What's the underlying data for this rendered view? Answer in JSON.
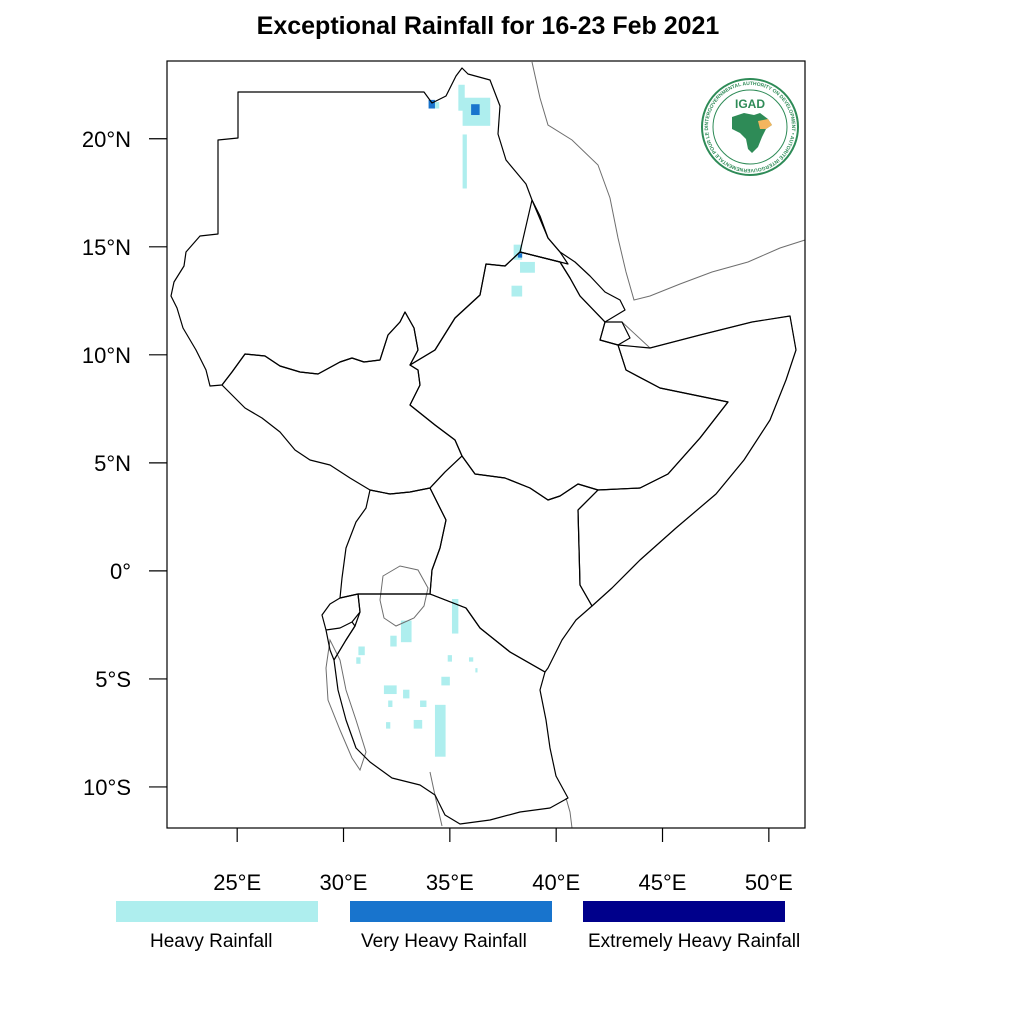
{
  "title": "Exceptional Rainfall for 16-23 Feb 2021",
  "colors": {
    "heavy": "#aeeeee",
    "very_heavy": "#1874cd",
    "extremely_heavy": "#00008b",
    "border": "#000000",
    "coast_gray": "#6e6e6e"
  },
  "axes": {
    "lon_ticks": [
      {
        "value": 25,
        "label": "25°E"
      },
      {
        "value": 30,
        "label": "30°E"
      },
      {
        "value": 35,
        "label": "35°E"
      },
      {
        "value": 40,
        "label": "40°E"
      },
      {
        "value": 45,
        "label": "45°E"
      },
      {
        "value": 50,
        "label": "50°E"
      }
    ],
    "lat_ticks": [
      {
        "value": 20,
        "label": "20°N"
      },
      {
        "value": 15,
        "label": "15°N"
      },
      {
        "value": 10,
        "label": "10°N"
      },
      {
        "value": 5,
        "label": "5°N"
      },
      {
        "value": 0,
        "label": "0°"
      },
      {
        "value": -5,
        "label": "5°S"
      },
      {
        "value": -10,
        "label": "10°S"
      }
    ],
    "lon_range": [
      21.7,
      51.7
    ],
    "lat_range": [
      -11.9,
      23.6
    ]
  },
  "legend": [
    {
      "label": "Heavy Rainfall",
      "color": "#aeeeee"
    },
    {
      "label": "Very Heavy Rainfall",
      "color": "#1874cd"
    },
    {
      "label": "Extremely Heavy Rainfall",
      "color": "#00008b"
    }
  ],
  "logo": {
    "text": "IGAD",
    "ring_text": "INTERGOVERNMENTAL AUTHORITY ON DEVELOPMENT • AUTORITÉ INTERGOUVERNEMENTALE POUR LE DÉVELOPPEMENT"
  },
  "rainfall_patches": [
    {
      "category": "heavy",
      "lon": [
        35.4,
        35.7
      ],
      "lat": [
        21.3,
        22.5
      ]
    },
    {
      "category": "very_heavy",
      "lon": [
        34.0,
        34.3
      ],
      "lat": [
        21.4,
        21.8
      ]
    },
    {
      "category": "heavy",
      "lon": [
        34.3,
        34.5
      ],
      "lat": [
        21.4,
        21.7
      ]
    },
    {
      "category": "heavy",
      "lon": [
        35.6,
        36.9
      ],
      "lat": [
        20.6,
        21.9
      ]
    },
    {
      "category": "very_heavy",
      "lon": [
        36.0,
        36.4
      ],
      "lat": [
        21.1,
        21.6
      ]
    },
    {
      "category": "heavy",
      "lon": [
        35.6,
        35.8
      ],
      "lat": [
        17.7,
        20.2
      ]
    },
    {
      "category": "heavy",
      "lon": [
        38.0,
        38.4
      ],
      "lat": [
        14.4,
        15.1
      ]
    },
    {
      "category": "very_heavy",
      "lon": [
        38.2,
        38.4
      ],
      "lat": [
        14.5,
        14.7
      ]
    },
    {
      "category": "heavy",
      "lon": [
        38.3,
        39.0
      ],
      "lat": [
        13.8,
        14.3
      ]
    },
    {
      "category": "heavy",
      "lon": [
        37.9,
        38.4
      ],
      "lat": [
        12.7,
        13.2
      ]
    },
    {
      "category": "heavy",
      "lon": [
        35.1,
        35.4
      ],
      "lat": [
        -2.9,
        -1.3
      ]
    },
    {
      "category": "heavy",
      "lon": [
        32.7,
        33.2
      ],
      "lat": [
        -3.3,
        -2.3
      ]
    },
    {
      "category": "heavy",
      "lon": [
        32.2,
        32.5
      ],
      "lat": [
        -3.5,
        -3.0
      ]
    },
    {
      "category": "heavy",
      "lon": [
        30.7,
        31.0
      ],
      "lat": [
        -3.9,
        -3.5
      ]
    },
    {
      "category": "heavy",
      "lon": [
        30.6,
        30.8
      ],
      "lat": [
        -4.3,
        -4.0
      ]
    },
    {
      "category": "heavy",
      "lon": [
        34.6,
        35.0
      ],
      "lat": [
        -5.3,
        -4.9
      ]
    },
    {
      "category": "heavy",
      "lon": [
        34.9,
        35.1
      ],
      "lat": [
        -4.2,
        -3.9
      ]
    },
    {
      "category": "heavy",
      "lon": [
        33.6,
        33.9
      ],
      "lat": [
        -6.3,
        -6.0
      ]
    },
    {
      "category": "heavy",
      "lon": [
        31.9,
        32.5
      ],
      "lat": [
        -5.7,
        -5.3
      ]
    },
    {
      "category": "heavy",
      "lon": [
        32.8,
        33.1
      ],
      "lat": [
        -5.9,
        -5.5
      ]
    },
    {
      "category": "heavy",
      "lon": [
        32.1,
        32.3
      ],
      "lat": [
        -6.3,
        -6.0
      ]
    },
    {
      "category": "heavy",
      "lon": [
        34.3,
        34.8
      ],
      "lat": [
        -8.6,
        -6.2
      ]
    },
    {
      "category": "heavy",
      "lon": [
        33.3,
        33.7
      ],
      "lat": [
        -7.3,
        -6.9
      ]
    },
    {
      "category": "heavy",
      "lon": [
        32.0,
        32.2
      ],
      "lat": [
        -7.3,
        -7.0
      ]
    },
    {
      "category": "heavy",
      "lon": [
        35.9,
        36.1
      ],
      "lat": [
        -4.2,
        -4.0
      ]
    },
    {
      "category": "heavy",
      "lon": [
        36.2,
        36.3
      ],
      "lat": [
        -4.7,
        -4.5
      ]
    }
  ]
}
